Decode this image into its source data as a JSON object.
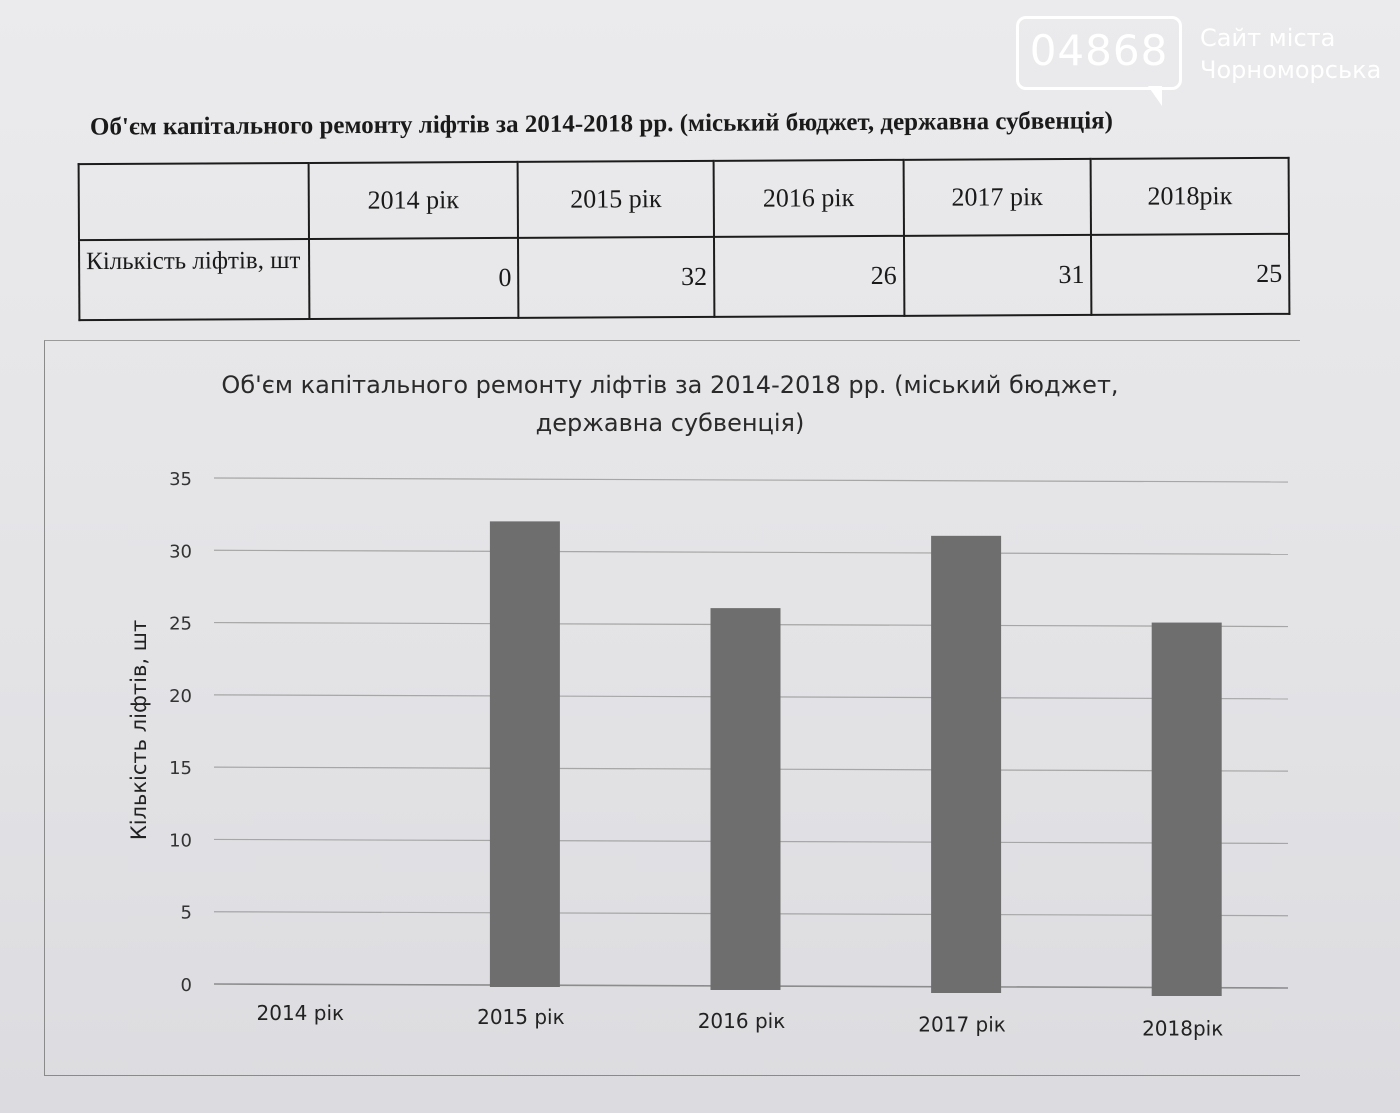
{
  "watermark": {
    "number": "04868",
    "line1": "Сайт міста",
    "line2": "Чорноморська"
  },
  "document_title": "Об'єм капітального ремонту ліфтів за 2014-2018 рр. (міський бюджет, державна субвенція)",
  "table": {
    "headers": [
      "",
      "2014 рік",
      "2015 рік",
      "2016 рік",
      "2017 рік",
      "2018рік"
    ],
    "row_label": "Кількість ліфтів, шт",
    "values": [
      "0",
      "32",
      "26",
      "31",
      "25"
    ]
  },
  "chart_data": {
    "type": "bar",
    "title_line1": "Об'єм капітального ремонту ліфтів за 2014-2018 рр. (міський бюджет,",
    "title_line2": "державна субвенція)",
    "categories": [
      "2014 рік",
      "2015 рік",
      "2016 рік",
      "2017 рік",
      "2018рік"
    ],
    "values": [
      0,
      32,
      26,
      31,
      25
    ],
    "xlabel": "",
    "ylabel": "Кількість ліфтів, шт",
    "ylim": [
      0,
      35
    ],
    "yticks": [
      "0",
      "5",
      "10",
      "15",
      "20",
      "25",
      "30",
      "35"
    ],
    "grid": true,
    "bar_color": "#6e6e6e"
  }
}
